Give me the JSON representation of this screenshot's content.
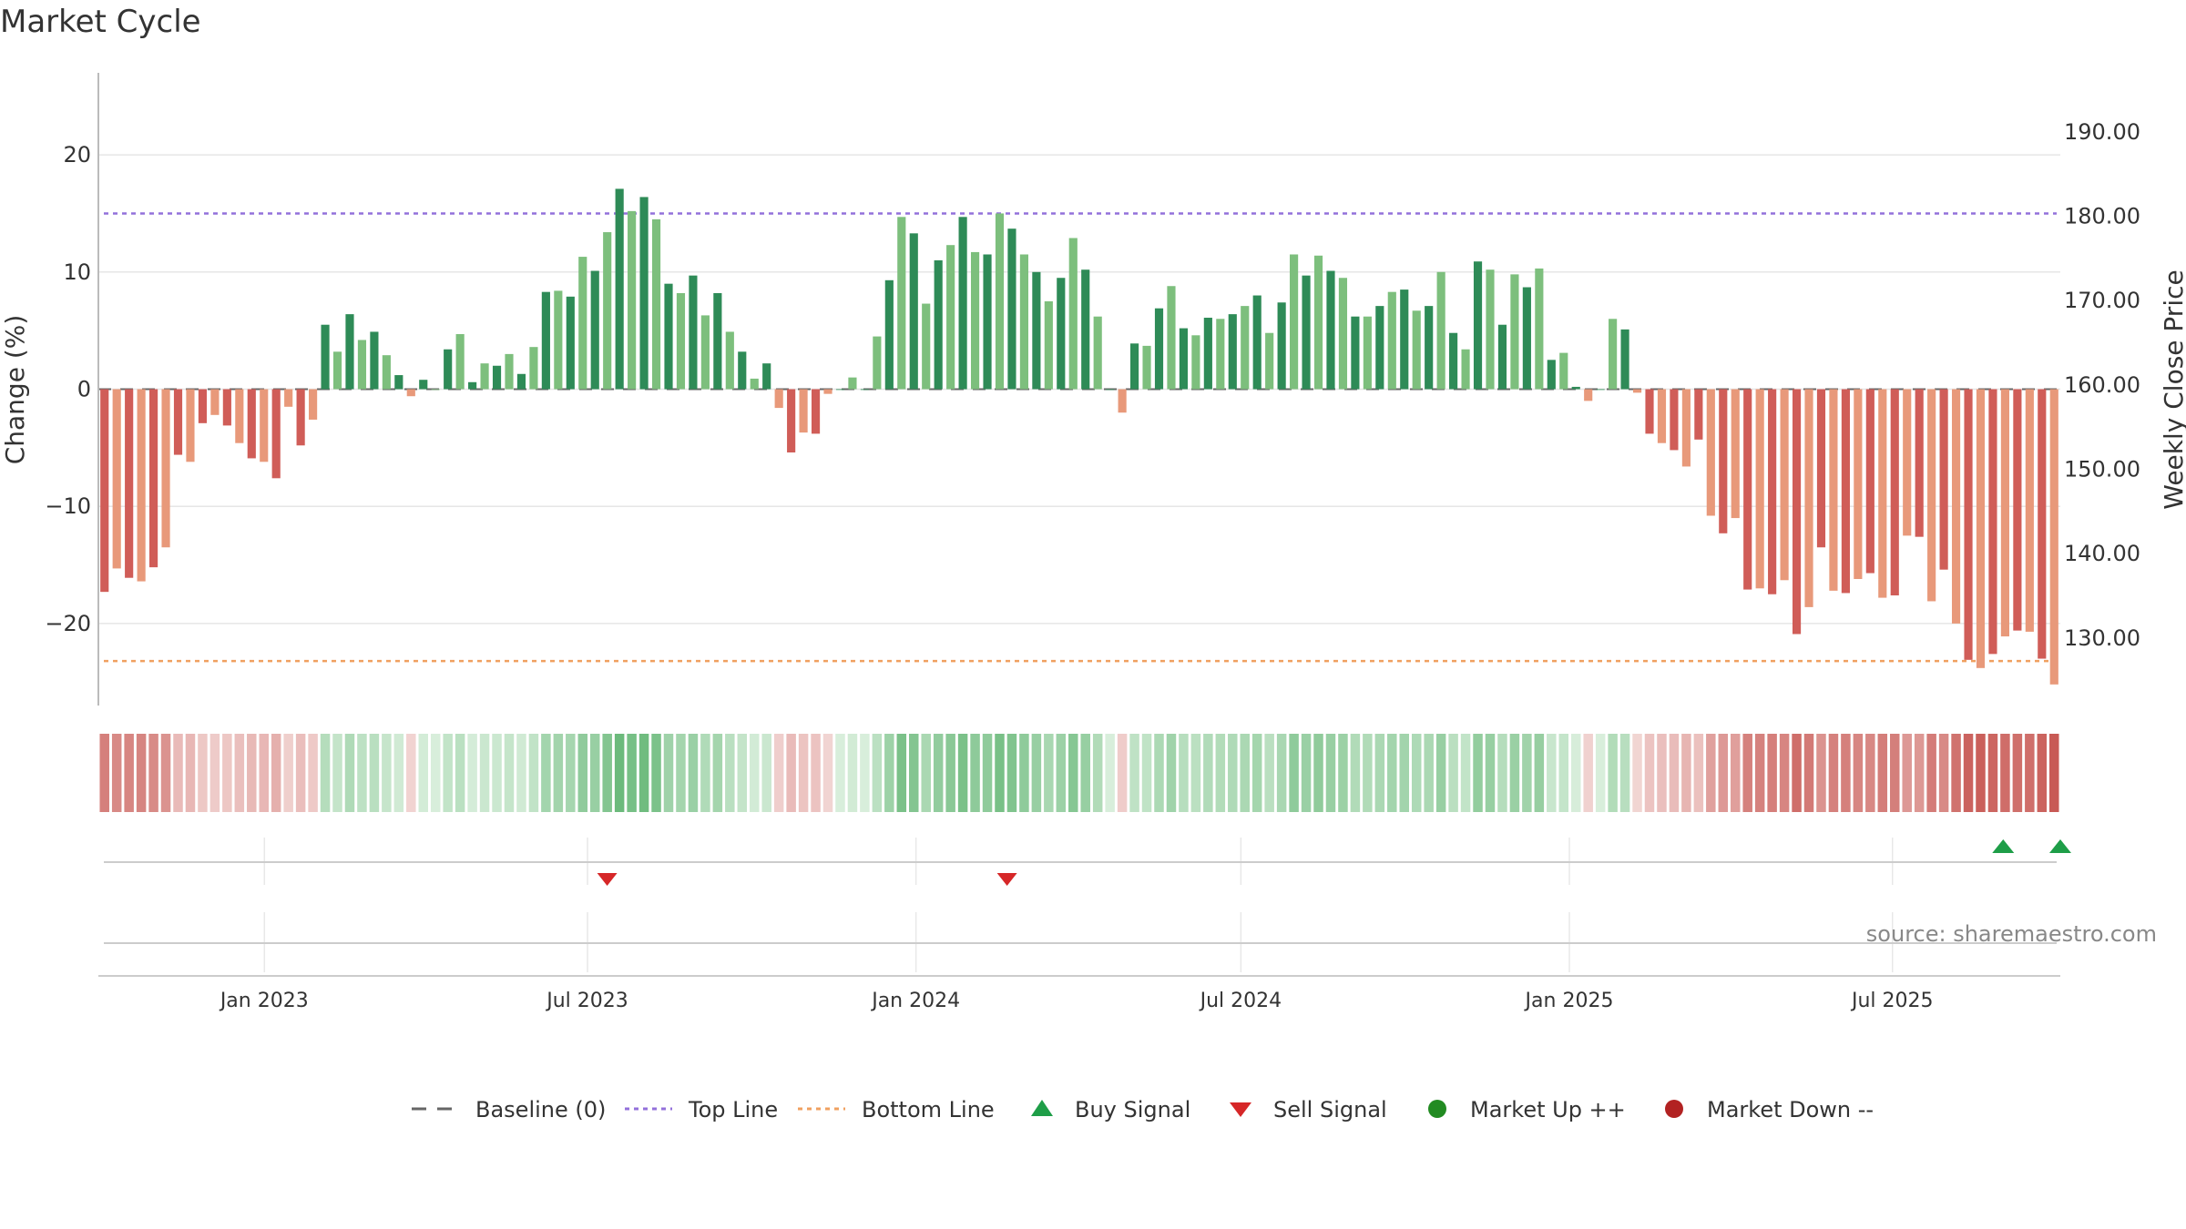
{
  "chart_data": {
    "type": "bar",
    "title": "Market Cycle",
    "ylabel_left": "Change (%)",
    "ylabel_right": "Weekly Close Price",
    "left_ylim": [
      -27,
      27
    ],
    "right_ylim": [
      122,
      197
    ],
    "left_ticks": [
      "20",
      "10",
      "0",
      "−10",
      "−20"
    ],
    "left_tick_values": [
      20,
      10,
      0,
      -10,
      -20
    ],
    "right_ticks": [
      "190.00",
      "180.00",
      "170.00",
      "160.00",
      "150.00",
      "140.00",
      "130.00"
    ],
    "right_tick_values": [
      190,
      180,
      170,
      160,
      150,
      140,
      130
    ],
    "top_line": 15,
    "bottom_line": -23.2,
    "x_start": "2022-09-30",
    "x_end": "2025-10-03",
    "date_ticks": [
      {
        "label": "Jan 2023",
        "date": "2023-01-01"
      },
      {
        "label": "Jul 2023",
        "date": "2023-07-01"
      },
      {
        "label": "Jan 2024",
        "date": "2024-01-01"
      },
      {
        "label": "Jul 2024",
        "date": "2024-07-01"
      },
      {
        "label": "Jan 2025",
        "date": "2025-01-01"
      },
      {
        "label": "Jul 2025",
        "date": "2025-07-01"
      }
    ],
    "values": [
      -17.3,
      -15.3,
      -16.1,
      -16.4,
      -15.2,
      -13.5,
      -5.6,
      -6.2,
      -2.9,
      -2.2,
      -3.1,
      -4.6,
      -5.9,
      -6.2,
      -7.6,
      -1.5,
      -4.8,
      -2.6,
      5.5,
      3.2,
      6.4,
      4.2,
      4.9,
      2.9,
      1.2,
      -0.6,
      0.8,
      0,
      3.4,
      4.7,
      0.6,
      2.2,
      2,
      3,
      1.3,
      3.6,
      8.3,
      8.4,
      7.9,
      11.3,
      10.1,
      13.4,
      17.1,
      15.2,
      16.4,
      14.5,
      9,
      8.2,
      9.7,
      6.3,
      8.2,
      4.9,
      3.2,
      0.9,
      2.2,
      -1.6,
      -5.4,
      -3.7,
      -3.8,
      -0.4,
      0,
      1,
      0,
      4.5,
      9.3,
      14.7,
      13.3,
      7.3,
      11,
      12.3,
      14.7,
      11.7,
      11.5,
      15,
      13.7,
      11.5,
      10,
      7.5,
      9.5,
      12.9,
      10.2,
      6.2,
      0,
      -2,
      3.9,
      3.7,
      6.9,
      8.8,
      5.2,
      4.6,
      6.1,
      6,
      6.4,
      7.1,
      8,
      4.8,
      7.4,
      11.5,
      9.7,
      11.4,
      10.1,
      9.5,
      6.2,
      6.2,
      7.1,
      8.3,
      8.5,
      6.7,
      7.1,
      10,
      4.8,
      3.4,
      10.9,
      10.2,
      5.5,
      9.8,
      8.7,
      10.3,
      2.5,
      3.1,
      0.2,
      -1,
      0,
      6,
      5.1,
      -0.3,
      -3.8,
      -4.6,
      -5.2,
      -6.6,
      -4.3,
      -10.8,
      -12.3,
      -11,
      -17.1,
      -17,
      -17.5,
      -16.3,
      -20.9,
      -18.6,
      -13.5,
      -17.2,
      -17.4,
      -16.2,
      -15.7,
      -17.8,
      -17.6,
      -12.5,
      -12.6,
      -18.1,
      -15.4,
      -20,
      -23.1,
      -23.8,
      -22.6,
      -21.1,
      -20.6,
      -20.7,
      -23,
      -25.2
    ],
    "signals": [
      {
        "type": "sell",
        "date": "2023-07-12"
      },
      {
        "type": "sell",
        "date": "2024-02-21"
      },
      {
        "type": "buy",
        "date": "2025-09-01"
      },
      {
        "type": "buy",
        "date": "2025-10-03"
      }
    ],
    "source": "source: sharemaestro.com",
    "legend": [
      {
        "label": "Baseline (0)",
        "symbol": "dash",
        "color": "#666666"
      },
      {
        "label": "Top Line",
        "symbol": "dotted",
        "color": "#9370db"
      },
      {
        "label": "Bottom Line",
        "symbol": "dotted",
        "color": "#f0a060"
      },
      {
        "label": "Buy Signal",
        "symbol": "triangle-up",
        "color": "#1e9e48"
      },
      {
        "label": "Sell Signal",
        "symbol": "triangle-down",
        "color": "#d62728"
      },
      {
        "label": "Market Up ++",
        "symbol": "circle",
        "color": "#228b22"
      },
      {
        "label": "Market Down --",
        "symbol": "circle",
        "color": "#b22222"
      }
    ],
    "colors": {
      "up_dark": "#2e8b57",
      "up_light": "#7dbf7d",
      "down_dark": "#d05d58",
      "down_light": "#e8997a",
      "top_line": "#9370db",
      "bottom_line": "#f0a060",
      "buy": "#1e9e48",
      "sell": "#d62728"
    }
  }
}
